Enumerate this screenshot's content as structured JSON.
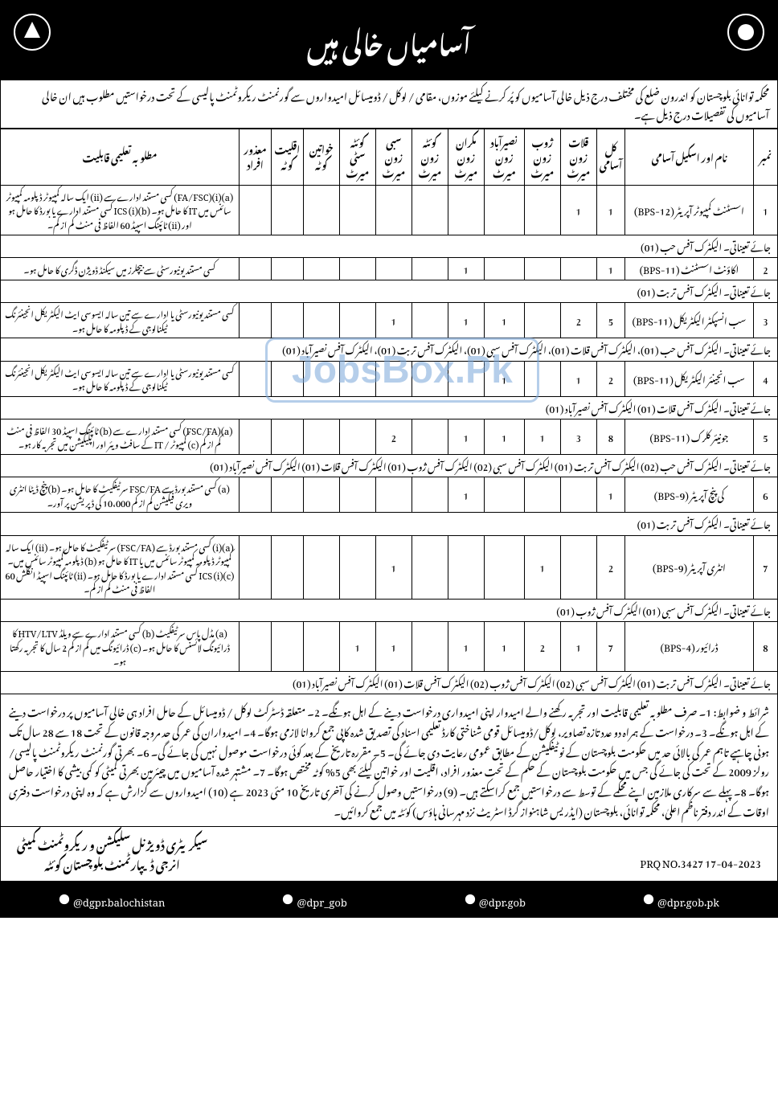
{
  "header": {
    "title": "آسامیاں خالی ہیں",
    "emblem_fill": "#ffffff",
    "emblem_bg": "#000000"
  },
  "intro": "محکمہ توانائی بلوچستان کو اندرون ضلع کی مختلف درج ذیل خالی آسامیوں کو پُر کرنے کیلئے موزوں، مقامی / لوکل / ڈومیسائل امیدواروں سے گورنمنٹ ریکروٹمنٹ پالیسی کے تحت درخواستیں مطلوب ہیں ان خالی آسامیوں کی تفصیلات درج ذیل ہے۔",
  "columns": {
    "num": "نمبر",
    "post": "نام اور اسکیل آسامی",
    "total": "کل آسامی",
    "qalat": "قلات زون میرٹ",
    "zhob": "ژوب زون میرٹ",
    "naseer": "نصیرآباد زون میرٹ",
    "makran": "مکران زون میرٹ",
    "quetta": "کوئٹہ زون میرٹ",
    "sibi": "سبی زون میرٹ",
    "quetta_city": "کوئٹہ سٹی میرٹ",
    "women": "خواتین کوٹہ",
    "minority": "اقلیت کوٹہ",
    "disabled": "معذور افراد",
    "qual": "مطلوبہ تعلیمی قابلیت"
  },
  "rows": [
    {
      "num": "1",
      "post": "اسسٹنٹ کمپیوٹر آپریٹر (BPS-12)",
      "total": "1",
      "qalat": "1",
      "zhob": "",
      "naseer": "",
      "makran": "",
      "quetta": "",
      "sibi": "",
      "quetta_city": "",
      "women": "",
      "minority": "",
      "disabled": "",
      "qual": "(a)(i)(FA/FSC) کسی مستند ادارے سے (ii) ایک سالہ کمپیوٹر ڈپلومہ کمپیوٹر سائنس میں IT کا حامل ہو۔ (b)(i) ICS کسی مستند ادارے یا بورڈ کا حامل ہو اور (ii) ٹائپنگ اسپیڈ 60 الفاظ فی منٹ کم از کم۔",
      "posting": "جائے تعیناتی۔ الیکٹرک آفس حب (01)"
    },
    {
      "num": "2",
      "post": "اکاؤنٹ اسسٹنٹ (BPS-11)",
      "total": "1",
      "qalat": "",
      "zhob": "",
      "naseer": "",
      "makran": "1",
      "quetta": "",
      "sibi": "",
      "quetta_city": "",
      "women": "",
      "minority": "",
      "disabled": "",
      "qual": "کسی مستند یونیورسٹی سے بیچلرز میں سیکنڈ ڈویژن ڈگری کا حامل ہو۔",
      "posting": "جائے تعیناتی۔ الیکٹرک آفس تربت (01)"
    },
    {
      "num": "3",
      "post": "سب انسپکٹر الیکٹریکل (BPS-11)",
      "total": "5",
      "qalat": "2",
      "zhob": "",
      "naseer": "1",
      "makran": "1",
      "quetta": "",
      "sibi": "1",
      "quetta_city": "",
      "women": "",
      "minority": "",
      "disabled": "",
      "qual": "کسی مستند یونیورسٹی یا ادارے سے تین سالہ ایسوسی ایٹ الیکٹریکل انجینئرنگ ٹیکنالوجی کے ڈپلومہ کا حامل ہو۔",
      "posting": "جائے تعیناتی۔ الیکٹرک آفس حب (01)، الیکٹرک آفس قلات (01)، الیکٹرک آفس سبی (01)، الیکٹرک آفس تربت (01)، الیکٹرک آفس نصیرآباد (01)"
    },
    {
      "num": "4",
      "post": "سب انجینئر الیکٹریکل (BPS-11)",
      "total": "2",
      "qalat": "1",
      "zhob": "",
      "naseer": "1",
      "makran": "",
      "quetta": "",
      "sibi": "",
      "quetta_city": "",
      "women": "",
      "minority": "",
      "disabled": "",
      "qual": "کسی مستند یونیورسٹی یا ادارے سے تین سالہ ایسوسی ایٹ الیکٹریکل انجینئرنگ ٹیکنالوجی کے ڈپلومہ کا حامل ہو۔",
      "posting": "جائے تعیناتی۔ الیکٹرک آفس قلات (01) الیکٹرک آفس نصیرآباد (01)"
    },
    {
      "num": "5",
      "post": "جونیئر کلرک (BPS-11)",
      "total": "8",
      "qalat": "3",
      "zhob": "1",
      "naseer": "1",
      "makran": "1",
      "quetta": "",
      "sibi": "2",
      "quetta_city": "",
      "women": "",
      "minority": "",
      "disabled": "",
      "qual": "(a)(FSC/FA) کسی مستند ادارے سے (b) ٹائپنگ اسپیڈ 30 الفاظ فی منٹ کم از کم (c) کمپیوٹر / IT کے سافٹ ویئر اور اپلیکیشن میں تجربہ کار ہو۔",
      "posting": "جائے تعیناتی۔ الیکٹرک آفس حب (02) الیکٹرک آفس تربت (01) الیکٹرک آفس سبی (02) الیکٹرک آفس ژوب (01) الیکٹرک آفس قلات (01) الیکٹرک آفس نصیرآباد (01)"
    },
    {
      "num": "6",
      "post": "کی پنچ آپریٹر (BPS-9)",
      "total": "1",
      "qalat": "",
      "zhob": "",
      "naseer": "",
      "makran": "1",
      "quetta": "",
      "sibi": "",
      "quetta_city": "",
      "women": "",
      "minority": "",
      "disabled": "",
      "qual": "(a) کسی مستند بورڈ سے FSC/FA سرٹیفکیٹ کا حامل ہو۔ (b) پنچ ڈیٹا انٹری ویری فیکیشن کم از کم 10،000 کی ڈپریشن پر آور۔",
      "posting": "جائے تعیناتی۔ الیکٹرک آفس تربت (01)"
    },
    {
      "num": "7",
      "post": "انٹری آپریٹر (BPS-9)",
      "total": "2",
      "qalat": "",
      "zhob": "1",
      "naseer": "",
      "makran": "",
      "quetta": "",
      "sibi": "1",
      "quetta_city": "",
      "women": "",
      "minority": "",
      "disabled": "",
      "qual": "(a)(i) کسی مستند بورڈ سے (FSC/FA) سرٹیفکیٹ کا حامل ہو۔ (ii) ایک سالہ کمپیوٹر ڈپلومہ کمپیوٹر سائنس میں یا IT کا حامل ہو (b) ڈپلومہ کمپیوٹر سائنس میں۔ (c)(i) ICS کسی مستند ادارے یا بورڈ کا حامل ہو۔ (ii) ٹائپنگ اسپیڈ انگلش 60 الفاظ فی منٹ کم از کم۔",
      "posting": "جائے تعیناتی۔ الیکٹرک آفس سبی (01) الیکٹرک آفس ژوب (01)"
    },
    {
      "num": "8",
      "post": "ڈرائیور (BPS-4)",
      "total": "7",
      "qalat": "1",
      "zhob": "2",
      "naseer": "1",
      "makran": "1",
      "quetta": "",
      "sibi": "1",
      "quetta_city": "1",
      "women": "",
      "minority": "",
      "disabled": "",
      "qual": "(a) مڈل پاس سرٹیفکیٹ (b) کسی مستند ادارے سے ویلڈ HTV/LTV کا ڈرائیونگ لائسنس کا حامل ہو۔ (c) ڈرائیونگ میں کم از کم 2 سال کا تجربہ رکھتا ہو۔",
      "posting": "جائے تعیناتی۔ الیکٹرک آفس تربت (01) الیکٹرک آفس سبی (02) الیکٹرک آفس ژوب (02) الیکٹرک آفس قلات (01) الیکٹرک آفس نصیرآباد (01)"
    }
  ],
  "conditions": "شرائط و ضوابط: 1۔ صرف مطلوبہ تعلیمی قابلیت اور تجربہ رکھنے والے امیدوار اپنی امیدواری درخواست دینے کے اہل ہونگے۔ 2۔ متعلقہ ڈسٹرکٹ لوکل / ڈومیسائل کے حامل افراد ہی خالی آسامیوں پر درخواست دینے کے اہل ہونگے۔ 3۔ درخواست کے ہمراہ دو عدد تازہ تصاویر، لوکل/ڈومیسائل قومی شناختی کارڈ تعلیمی اسناد کی تصدیق شدہ کاپی جمع کروانا لازمی ہوگا۔ 4۔ امیدواران کی عمر کی حد مروجہ قانون کے تحت 18 سے 28 سال تک ہونی چاہیے تاہم عمر کی بالائی حد میں حکومت بلوچستان کے نوٹیفکیشن کے مطابق عمومی رعایت دی جائے گی۔ 5۔ مقررہ تاریخ کے بعد کوئی درخواست موصول نہیں کی جائے گی۔ 6۔ بھرتی گورنمنٹ ریکروٹمنٹ پالیسی/رولز 2009 کے تحت کی جائے گی جس میں حکومت بلوچستان کے حکم کے تحت معذور افراد، اقلیت اور خواتین کیلئے بھی 5% کوٹہ مختص ہوگا۔ 7۔ مشتہر شدہ آسامیوں میں چیئرمین بھرتی کمیٹی کو کمی بیشی کا اختیار حاصل ہوگا۔ 8۔ پہلے سے سرکاری ملازمین اپنے محکمے کے توسط سے درخواستیں جمع کراسکتے ہیں۔ (9) درخواستیں وصول کرنے کی آخری تاریخ 10 مئی 2023 ہے (10) امیدواروں سے گزارش ہے کہ وہ اپنی درخواست دفتری اوقات کے اندر دفتر ناظم اعلیٰ، محکمہ توانائی، بلوچستان (ایڈریس شاہنواز گرڈ اسٹریٹ نزد مہرسانی ہاؤس) کوئٹہ میں جمع کروائیں۔",
  "signature": {
    "line1": "سیکریٹری ڈویژنل سلیکشن و ریکروٹمنٹ کمیٹی",
    "line2": "انرجی ڈیپارٹمنٹ بلوچستان کوئٹہ"
  },
  "prq": "PRQ NO.3427   17-04-2023",
  "footer": {
    "h1": "@dgpr.balochistan",
    "h2": "@dpr_gob",
    "h3": "@dpr.gob",
    "h4": "@dpr.gob.pk"
  },
  "watermark": "JobsBox.Pk",
  "colors": {
    "header_bg": "#000000",
    "header_text": "#ffffff",
    "border": "#000000",
    "watermark": "#7aa7d9"
  }
}
